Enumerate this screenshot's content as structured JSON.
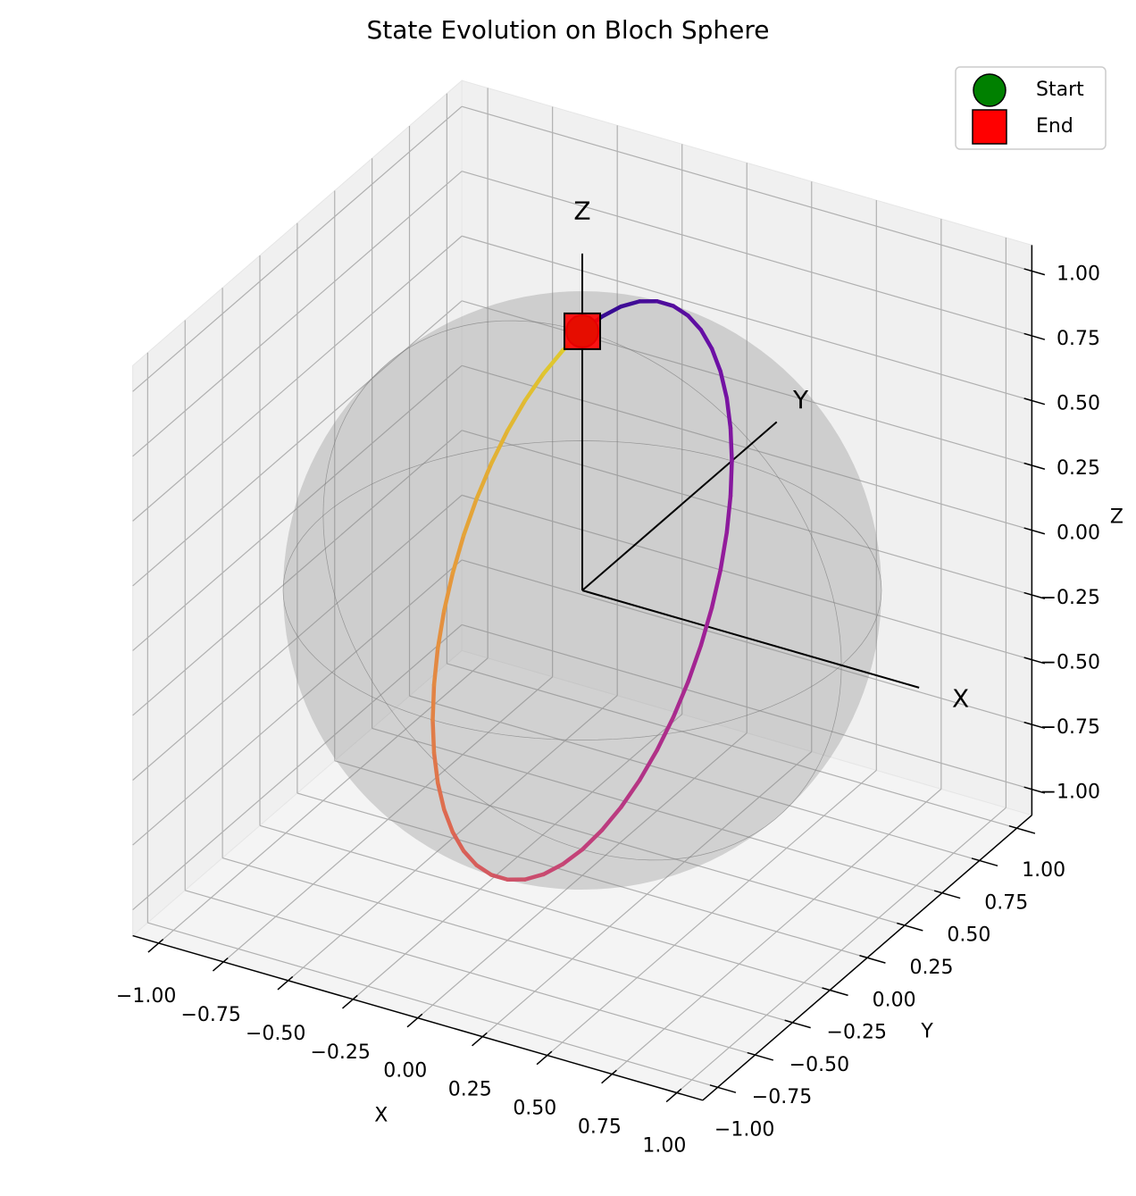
{
  "chart_data": {
    "type": "line3d",
    "title": "State Evolution on Bloch Sphere",
    "xlabel": "X",
    "ylabel": "Y",
    "zlabel": "Z",
    "xlim": [
      -1.1,
      1.1
    ],
    "ylim": [
      -1.1,
      1.1
    ],
    "zlim": [
      -1.1,
      1.1
    ],
    "xticks": [
      {
        "value": -1,
        "label": "−1.00"
      },
      {
        "value": -0.75,
        "label": "−0.75"
      },
      {
        "value": -0.5,
        "label": "−0.50"
      },
      {
        "value": -0.25,
        "label": "−0.25"
      },
      {
        "value": 0,
        "label": "0.00"
      },
      0.25,
      {
        "value": 0.5,
        "label": "0.50"
      },
      0.75,
      {
        "value": 1,
        "label": "1.00"
      }
    ],
    "yticks": [
      {
        "value": -1,
        "label": "−1.00"
      },
      {
        "value": -0.75,
        "label": "−0.75"
      },
      {
        "value": -0.5,
        "label": "−0.50"
      },
      {
        "value": -0.25,
        "label": "−0.25"
      },
      {
        "value": 0,
        "label": "0.00"
      },
      0.25,
      {
        "value": 0.5,
        "label": "0.50"
      },
      0.75,
      {
        "value": 1,
        "label": "1.00"
      }
    ],
    "zticks": [
      {
        "value": -1,
        "label": "−1.00"
      },
      {
        "value": -0.75,
        "label": "−0.75"
      },
      {
        "value": -0.5,
        "label": "−0.50"
      },
      {
        "value": -0.25,
        "label": "−0.25"
      },
      {
        "value": 0,
        "label": "0.00"
      },
      0.25,
      {
        "value": 0.5,
        "label": "0.50"
      },
      0.75,
      {
        "value": 1,
        "label": "1.00"
      }
    ],
    "grid": true,
    "legend": "upper right",
    "axis_arrows": [
      {
        "label": "X"
      },
      {
        "label": "Y"
      },
      {
        "label": "Z"
      }
    ],
    "series": [
      {
        "colormap": [
          "#2c0a8e",
          "#6a0fa6",
          "#9c1f98",
          "#c2417a",
          "#dc6552",
          "#e69a3b",
          "#ddd02c"
        ],
        "x": [
          0,
          0,
          0,
          0,
          0,
          0,
          0,
          0,
          0,
          0,
          0,
          0,
          0,
          0,
          0,
          0,
          0,
          0,
          0,
          0,
          0,
          0,
          0,
          0,
          0,
          0,
          0,
          0,
          0,
          0,
          0,
          0,
          0,
          0,
          0,
          0,
          0,
          0,
          0,
          0,
          0,
          0,
          0,
          0,
          0,
          0,
          0,
          0,
          0
        ],
        "y": [
          0,
          0.131,
          0.259,
          0.383,
          0.5,
          0.609,
          0.707,
          0.793,
          0.866,
          0.924,
          0.966,
          0.991,
          1,
          0.991,
          0.966,
          0.924,
          0.866,
          0.793,
          0.707,
          0.609,
          0.5,
          0.383,
          0.259,
          0.131,
          0,
          -0.131,
          -0.259,
          -0.383,
          -0.5,
          -0.609,
          -0.707,
          -0.793,
          -0.866,
          -0.924,
          -0.966,
          -0.991,
          -1,
          -0.991,
          -0.966,
          -0.924,
          -0.866,
          -0.793,
          -0.707,
          -0.609,
          -0.5,
          -0.383,
          -0.259,
          -0.131,
          0
        ],
        "z": [
          1,
          0.991,
          0.966,
          0.924,
          0.866,
          0.793,
          0.707,
          0.609,
          0.5,
          0.383,
          0.259,
          0.131,
          0,
          -0.131,
          -0.259,
          -0.383,
          -0.5,
          -0.609,
          -0.707,
          -0.793,
          -0.866,
          -0.924,
          -0.966,
          -0.991,
          -1,
          -0.991,
          -0.966,
          -0.924,
          -0.866,
          -0.793,
          -0.707,
          -0.609,
          -0.5,
          -0.383,
          -0.259,
          -0.131,
          0,
          0.131,
          0.259,
          0.383,
          0.5,
          0.609,
          0.707,
          0.793,
          0.866,
          0.924,
          0.966,
          0.991,
          1
        ]
      }
    ],
    "markers": [
      {
        "name": "Start",
        "shape": "circle",
        "color": "#008000",
        "x": 0,
        "y": 0,
        "z": 1
      },
      {
        "name": "End",
        "shape": "square",
        "color": "#ff0000",
        "x": 0,
        "y": 0,
        "z": 1
      }
    ]
  }
}
